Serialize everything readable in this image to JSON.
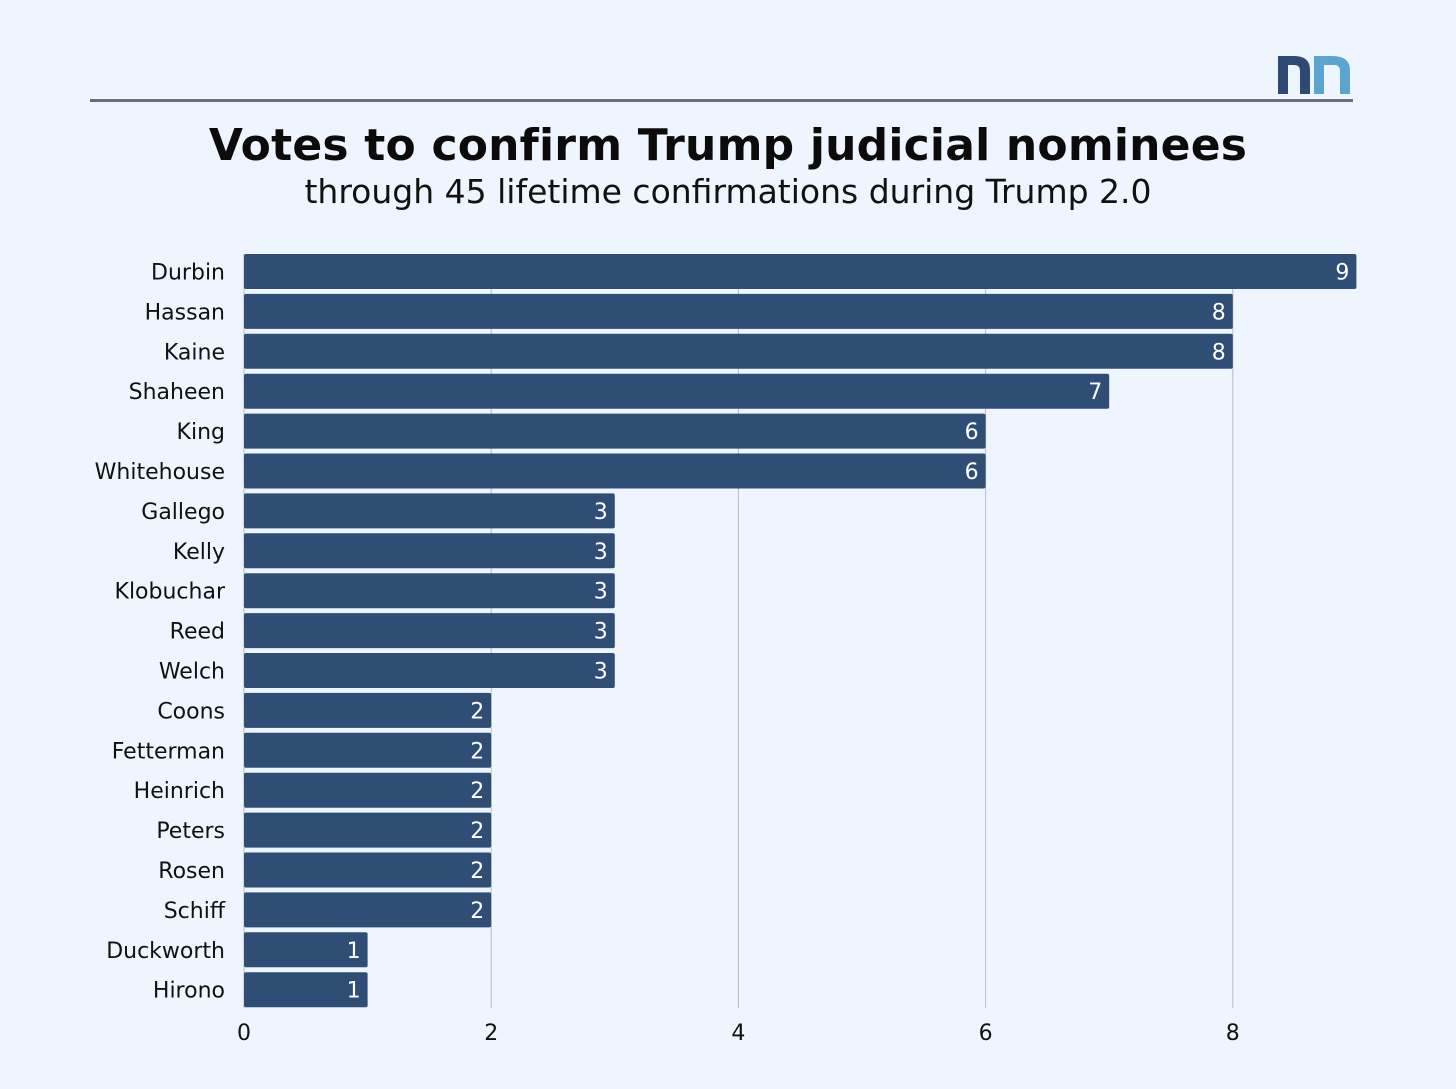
{
  "title": "Votes to confirm Trump judicial nominees",
  "subtitle": "through 45 lifetime confirmations during Trump 2.0",
  "logo": {
    "text": "nn",
    "colors": [
      "#2c4a73",
      "#5ba4d0"
    ]
  },
  "colors": {
    "bar": "#2e4e76",
    "background": "#eef5fe",
    "grid": "#b8bcc2"
  },
  "chart_data": {
    "type": "bar",
    "orientation": "horizontal",
    "title": "Votes to confirm Trump judicial nominees",
    "subtitle": "through 45 lifetime confirmations during Trump 2.0",
    "categories": [
      "Durbin",
      "Hassan",
      "Kaine",
      "Shaheen",
      "King",
      "Whitehouse",
      "Gallego",
      "Kelly",
      "Klobuchar",
      "Reed",
      "Welch",
      "Coons",
      "Fetterman",
      "Heinrich",
      "Peters",
      "Rosen",
      "Schiff",
      "Duckworth",
      "Hirono"
    ],
    "values": [
      9,
      8,
      8,
      7,
      6,
      6,
      3,
      3,
      3,
      3,
      3,
      2,
      2,
      2,
      2,
      2,
      2,
      1,
      1
    ],
    "xlim": [
      0,
      9
    ],
    "xticks": [
      0,
      2,
      4,
      6,
      8
    ],
    "grid": true,
    "data_labels": true
  }
}
